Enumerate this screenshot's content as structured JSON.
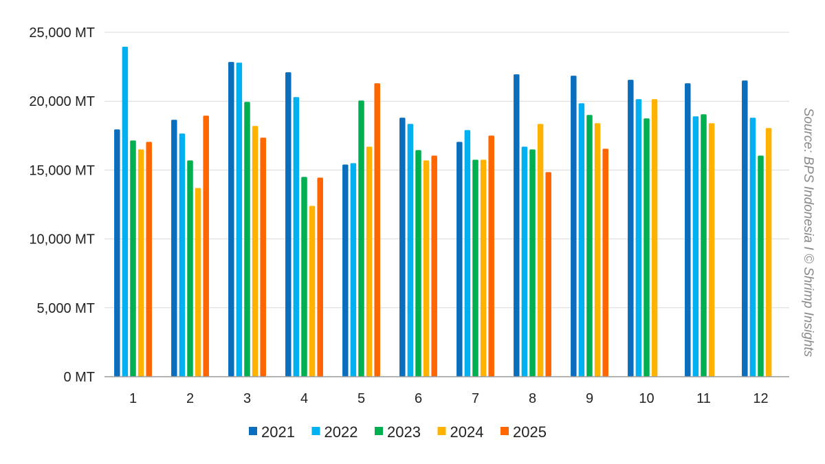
{
  "chart_data": {
    "type": "bar",
    "categories": [
      "1",
      "2",
      "3",
      "4",
      "5",
      "6",
      "7",
      "8",
      "9",
      "10",
      "11",
      "12"
    ],
    "series": [
      {
        "name": "2021",
        "color": "#0A6EBD",
        "values": [
          17950,
          18650,
          22850,
          22100,
          15400,
          18800,
          17050,
          21950,
          21850,
          21550,
          21300,
          21500
        ]
      },
      {
        "name": "2022",
        "color": "#00B0F0",
        "values": [
          23950,
          17650,
          22800,
          20300,
          15500,
          18350,
          17900,
          16700,
          19850,
          20150,
          18900,
          18800
        ]
      },
      {
        "name": "2023",
        "color": "#00B050",
        "values": [
          17150,
          15700,
          19950,
          14500,
          20050,
          16450,
          15750,
          16500,
          19000,
          18750,
          19050,
          16050
        ]
      },
      {
        "name": "2024",
        "color": "#FFB300",
        "values": [
          16500,
          13700,
          18200,
          12400,
          16700,
          15700,
          15750,
          18350,
          18400,
          20150,
          18400,
          18050
        ]
      },
      {
        "name": "2025",
        "color": "#FF6600",
        "values": [
          17050,
          18950,
          17350,
          14450,
          21300,
          16050,
          17500,
          14850,
          16550,
          null,
          null,
          null
        ]
      }
    ],
    "y_ticks": [
      "0 MT",
      "5,000 MT",
      "10,000 MT",
      "15,000 MT",
      "20,000 MT",
      "25,000 MT"
    ],
    "ylim": [
      0,
      25000
    ],
    "grid": true,
    "legend_position": "bottom",
    "annotation": "Source: BPS Indonesia I © Shrimp Insights"
  }
}
